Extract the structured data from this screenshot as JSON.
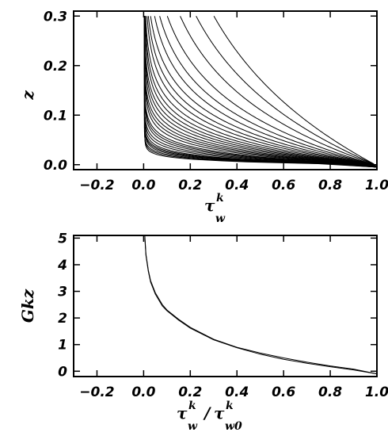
{
  "chart_data": [
    {
      "type": "line",
      "title": "",
      "xlabel": {
        "base": "τ",
        "sup": "k",
        "sub": "w"
      },
      "ylabel": "z",
      "xlim": [
        -0.3,
        1.0
      ],
      "ylim": [
        -0.01,
        0.31
      ],
      "x_ticks": [
        -0.2,
        0.0,
        0.2,
        0.4,
        0.6,
        0.8,
        1.0
      ],
      "x_tick_labels": [
        "−0.2",
        "0.0",
        "0.2",
        "0.4",
        "0.6",
        "0.8",
        "1.0"
      ],
      "y_ticks": [
        0.0,
        0.1,
        0.2,
        0.3
      ],
      "y_tick_labels": [
        "0.0",
        "0.1",
        "0.2",
        "0.3"
      ],
      "grid": false,
      "legend": "none",
      "series": [
        {
          "curve_scale": 0.25
        },
        {
          "curve_scale": 0.2
        },
        {
          "curve_scale": 0.16
        },
        {
          "curve_scale": 0.13
        },
        {
          "curve_scale": 0.11
        },
        {
          "curve_scale": 0.095
        },
        {
          "curve_scale": 0.083
        },
        {
          "curve_scale": 0.073
        },
        {
          "curve_scale": 0.065
        },
        {
          "curve_scale": 0.058
        },
        {
          "curve_scale": 0.052
        },
        {
          "curve_scale": 0.047
        },
        {
          "curve_scale": 0.043
        },
        {
          "curve_scale": 0.039
        },
        {
          "curve_scale": 0.035
        },
        {
          "curve_scale": 0.032
        },
        {
          "curve_scale": 0.029
        },
        {
          "curve_scale": 0.026
        },
        {
          "curve_scale": 0.023
        },
        {
          "curve_scale": 0.021
        },
        {
          "curve_scale": 0.019
        },
        {
          "curve_scale": 0.017
        },
        {
          "curve_scale": 0.015
        },
        {
          "curve_scale": 0.013
        },
        {
          "curve_scale": 0.012
        },
        {
          "curve_scale": 0.011
        },
        {
          "curve_scale": 0.01
        },
        {
          "curve_scale": 0.009
        },
        {
          "curve_scale": 0.008
        },
        {
          "curve_scale": 0.007
        }
      ]
    },
    {
      "type": "line",
      "title": "",
      "xlabel": {
        "base": "τ",
        "sup": "k",
        "sub": "w",
        "base2": "τ",
        "sup2": "k",
        "sub2": "w0"
      },
      "ylabel": "Gkz",
      "xlim": [
        -0.3,
        1.0
      ],
      "ylim": [
        -0.2,
        5.1
      ],
      "x_ticks": [
        -0.2,
        0.0,
        0.2,
        0.4,
        0.6,
        0.8,
        1.0
      ],
      "x_tick_labels": [
        "−0.2",
        "0.0",
        "0.2",
        "0.4",
        "0.6",
        "0.8",
        "1.0"
      ],
      "y_ticks": [
        0,
        1,
        2,
        3,
        4,
        5
      ],
      "y_tick_labels": [
        "0",
        "1",
        "2",
        "3",
        "4",
        "5"
      ],
      "grid": false,
      "legend": "none",
      "series": [
        {
          "x": [
            0.005,
            0.01,
            0.02,
            0.03,
            0.05,
            0.08,
            0.1,
            0.15,
            0.2,
            0.3,
            0.4,
            0.5,
            0.6,
            0.7,
            0.8,
            0.9,
            1.0
          ],
          "y": [
            5.1,
            4.4,
            3.8,
            3.4,
            2.95,
            2.5,
            2.3,
            1.95,
            1.65,
            1.2,
            0.9,
            0.68,
            0.5,
            0.34,
            0.2,
            0.08,
            -0.1
          ]
        },
        {
          "x": [
            0.005,
            0.01,
            0.02,
            0.03,
            0.05,
            0.08,
            0.1,
            0.15,
            0.2,
            0.3,
            0.4,
            0.5,
            0.6,
            0.7,
            0.8,
            0.9,
            1.0
          ],
          "y": [
            5.0,
            4.35,
            3.75,
            3.35,
            2.9,
            2.45,
            2.27,
            1.92,
            1.62,
            1.18,
            0.88,
            0.64,
            0.45,
            0.3,
            0.17,
            0.05,
            -0.1
          ]
        }
      ]
    }
  ]
}
